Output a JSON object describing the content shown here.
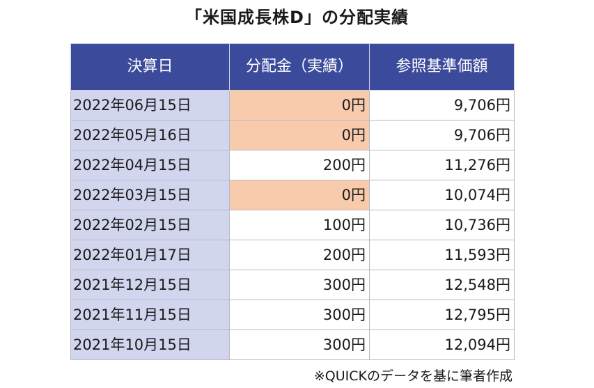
{
  "title": "「米国成長株D」の分配実績",
  "table": {
    "headers": [
      "決算日",
      "分配金（実績）",
      "参照基準価額"
    ],
    "rows": [
      {
        "date": "2022年06月15日",
        "distribution": "0円",
        "nav": "9,706円"
      },
      {
        "date": "2022年05月16日",
        "distribution": "0円",
        "nav": "9,706円"
      },
      {
        "date": "2022年04月15日",
        "distribution": "200円",
        "nav": "11,276円"
      },
      {
        "date": "2022年03月15日",
        "distribution": "0円",
        "nav": "10,074円"
      },
      {
        "date": "2022年02月15日",
        "distribution": "100円",
        "nav": "10,736円"
      },
      {
        "date": "2022年01月17日",
        "distribution": "200円",
        "nav": "11,593円"
      },
      {
        "date": "2021年12月15日",
        "distribution": "300円",
        "nav": "12,548円"
      },
      {
        "date": "2021年11月15日",
        "distribution": "300円",
        "nav": "12,795円"
      },
      {
        "date": "2021年10月15日",
        "distribution": "300円",
        "nav": "12,094円"
      }
    ]
  },
  "footnote": "※QUICKのデータを基に筆者作成",
  "colors": {
    "header_bg": "#3c4a9c",
    "date_bg": "#d2d5ee",
    "zero_highlight": "#f8cbad"
  }
}
